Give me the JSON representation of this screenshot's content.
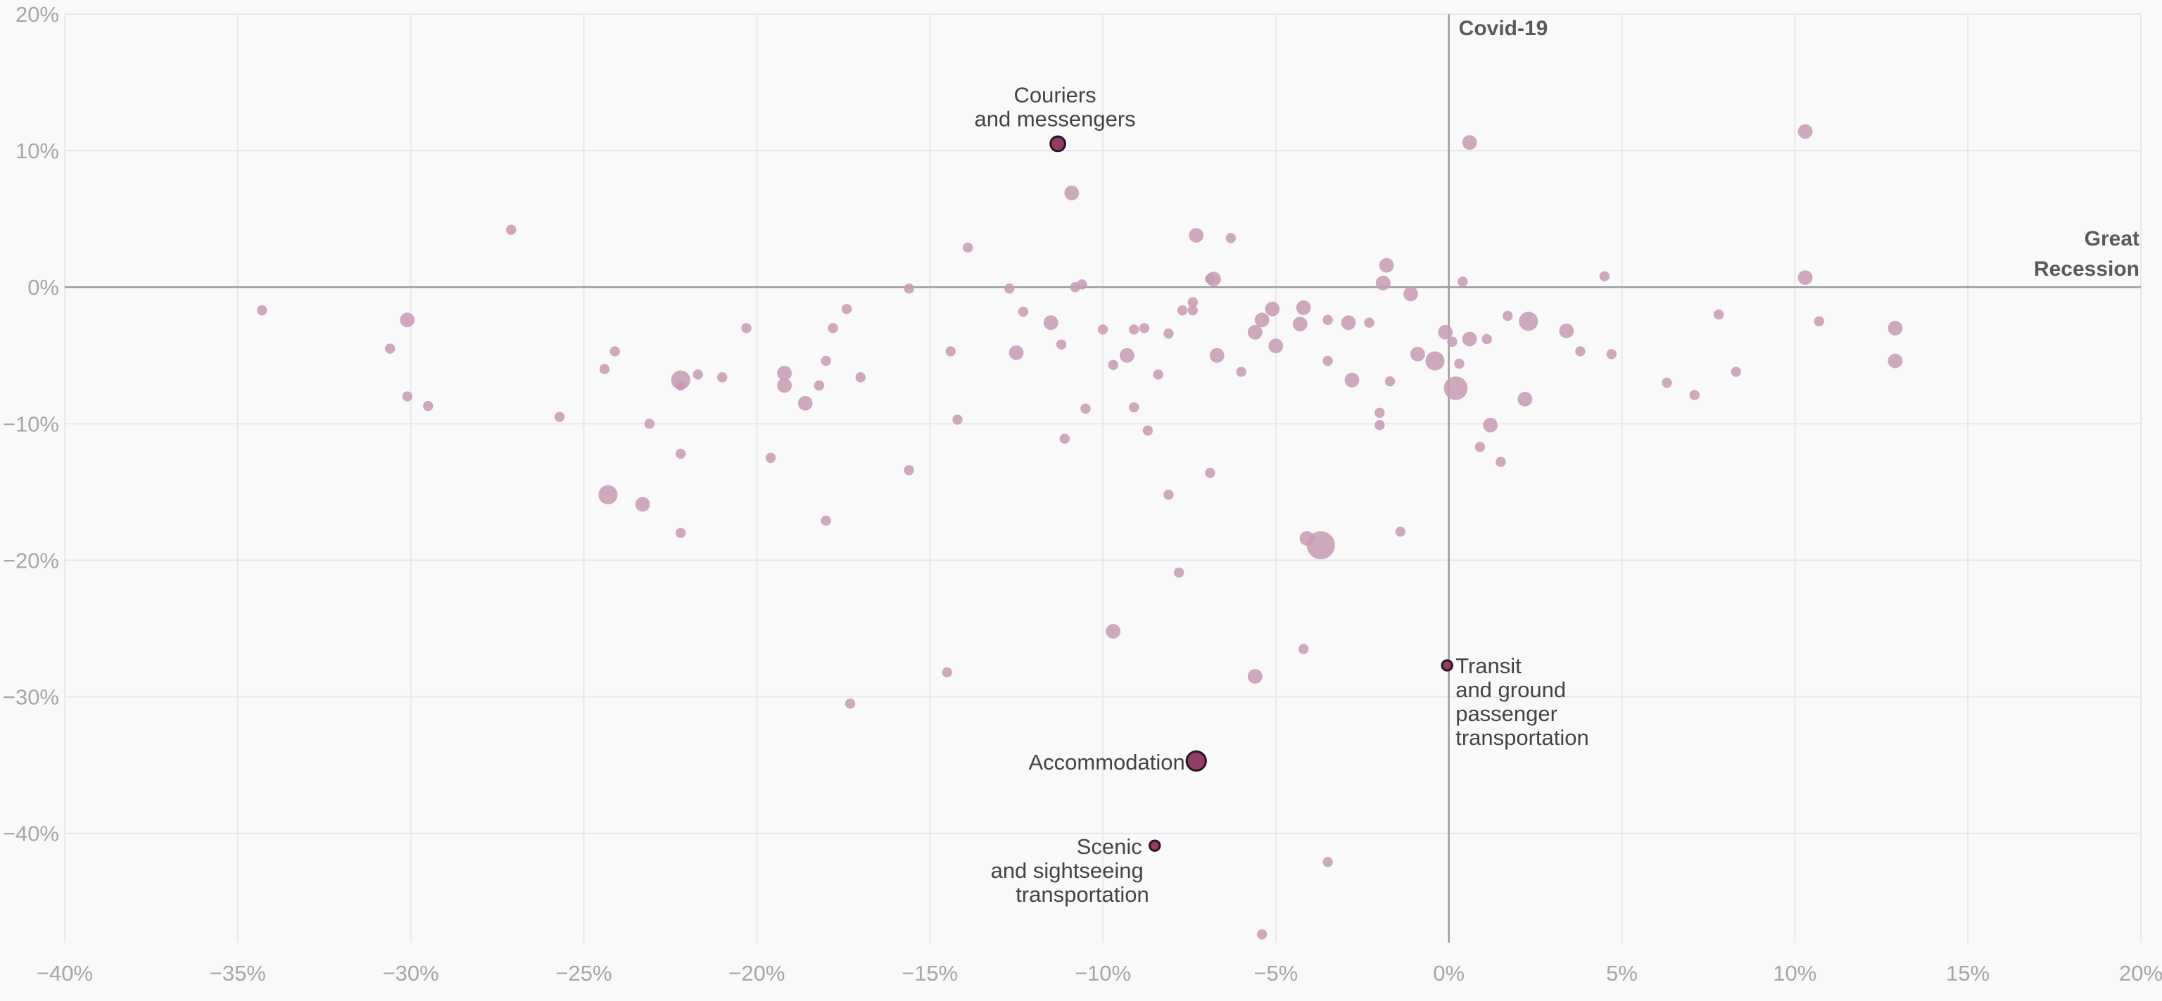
{
  "chart_data": {
    "type": "scatter",
    "title": "",
    "xlabel": "",
    "ylabel": "",
    "xlim": [
      -40,
      20
    ],
    "ylim": [
      -48,
      20
    ],
    "x_ticks": [
      -40,
      -35,
      -30,
      -25,
      -20,
      -15,
      -10,
      -5,
      0,
      5,
      10,
      15,
      20
    ],
    "x_tick_labels": [
      "−40%",
      "−35%",
      "−30%",
      "−25%",
      "−20%",
      "−15%",
      "−10%",
      "−5%",
      "0%",
      "5%",
      "10%",
      "15%",
      "20%"
    ],
    "y_ticks": [
      20,
      10,
      0,
      -10,
      -20,
      -30,
      -40
    ],
    "y_tick_labels": [
      "20%",
      "10%",
      "0%",
      "−10%",
      "−20%",
      "−30%",
      "−40%"
    ],
    "grid": true,
    "reference_lines": {
      "vertical": {
        "label": "Covid-19"
      },
      "horizontal": {
        "label_lines": [
          "Great",
          "Recession"
        ]
      }
    },
    "colors": {
      "point": "#c79ab3",
      "highlight": "#8f3f66",
      "grid": "#e8e8e8",
      "zero_line": "#9a9a9a"
    },
    "points": [
      {
        "x": -34.3,
        "y": -1.7,
        "r": 1
      },
      {
        "x": -30.1,
        "y": -2.4,
        "r": 2
      },
      {
        "x": -30.6,
        "y": -4.5,
        "r": 1
      },
      {
        "x": -30.1,
        "y": -8.0,
        "r": 1
      },
      {
        "x": -29.5,
        "y": -8.7,
        "r": 1
      },
      {
        "x": -27.1,
        "y": 4.2,
        "r": 1
      },
      {
        "x": -25.7,
        "y": -9.5,
        "r": 1
      },
      {
        "x": -24.4,
        "y": -6.0,
        "r": 1
      },
      {
        "x": -24.1,
        "y": -4.7,
        "r": 1
      },
      {
        "x": -24.3,
        "y": -15.2,
        "r": 3
      },
      {
        "x": -23.3,
        "y": -15.9,
        "r": 2
      },
      {
        "x": -23.1,
        "y": -10.0,
        "r": 1
      },
      {
        "x": -22.2,
        "y": -6.8,
        "r": 3
      },
      {
        "x": -22.2,
        "y": -7.2,
        "r": 1
      },
      {
        "x": -21.7,
        "y": -6.4,
        "r": 1
      },
      {
        "x": -22.2,
        "y": -12.2,
        "r": 1
      },
      {
        "x": -22.2,
        "y": -18.0,
        "r": 1
      },
      {
        "x": -21.0,
        "y": -6.6,
        "r": 1
      },
      {
        "x": -20.3,
        "y": -3.0,
        "r": 1
      },
      {
        "x": -19.6,
        "y": -12.5,
        "r": 1
      },
      {
        "x": -19.2,
        "y": -6.3,
        "r": 2
      },
      {
        "x": -19.2,
        "y": -7.2,
        "r": 2
      },
      {
        "x": -18.6,
        "y": -8.5,
        "r": 2
      },
      {
        "x": -18.2,
        "y": -7.2,
        "r": 1
      },
      {
        "x": -18.0,
        "y": -5.4,
        "r": 1
      },
      {
        "x": -17.8,
        "y": -3.0,
        "r": 1
      },
      {
        "x": -18.0,
        "y": -17.1,
        "r": 1
      },
      {
        "x": -17.4,
        "y": -1.6,
        "r": 1
      },
      {
        "x": -17.0,
        "y": -6.6,
        "r": 1
      },
      {
        "x": -17.3,
        "y": -30.5,
        "r": 1
      },
      {
        "x": -15.6,
        "y": -0.1,
        "r": 1
      },
      {
        "x": -15.6,
        "y": -13.4,
        "r": 1
      },
      {
        "x": -14.4,
        "y": -4.7,
        "r": 1
      },
      {
        "x": -14.2,
        "y": -9.7,
        "r": 1
      },
      {
        "x": -13.9,
        "y": 2.9,
        "r": 1
      },
      {
        "x": -14.5,
        "y": -28.2,
        "r": 1
      },
      {
        "x": -12.7,
        "y": -0.1,
        "r": 1
      },
      {
        "x": -12.5,
        "y": -4.8,
        "r": 2
      },
      {
        "x": -12.3,
        "y": -1.8,
        "r": 1
      },
      {
        "x": -11.5,
        "y": -2.6,
        "r": 2
      },
      {
        "x": -11.2,
        "y": -4.2,
        "r": 1
      },
      {
        "x": -11.1,
        "y": -11.1,
        "r": 1
      },
      {
        "x": -10.9,
        "y": 6.9,
        "r": 2
      },
      {
        "x": -10.8,
        "y": 0.0,
        "r": 1
      },
      {
        "x": -10.6,
        "y": 0.2,
        "r": 1
      },
      {
        "x": -10.5,
        "y": -8.9,
        "r": 1
      },
      {
        "x": -10.0,
        "y": -3.1,
        "r": 1
      },
      {
        "x": -9.7,
        "y": -5.7,
        "r": 1
      },
      {
        "x": -9.3,
        "y": -5.0,
        "r": 2
      },
      {
        "x": -9.1,
        "y": -3.1,
        "r": 1
      },
      {
        "x": -9.1,
        "y": -8.8,
        "r": 1
      },
      {
        "x": -8.8,
        "y": -3.0,
        "r": 1
      },
      {
        "x": -8.7,
        "y": -10.5,
        "r": 1
      },
      {
        "x": -9.7,
        "y": -25.2,
        "r": 2
      },
      {
        "x": -8.4,
        "y": -6.4,
        "r": 1
      },
      {
        "x": -8.1,
        "y": -3.4,
        "r": 1
      },
      {
        "x": -8.1,
        "y": -15.2,
        "r": 1
      },
      {
        "x": -7.8,
        "y": -20.9,
        "r": 1
      },
      {
        "x": -7.7,
        "y": -1.7,
        "r": 1
      },
      {
        "x": -7.4,
        "y": -1.7,
        "r": 1
      },
      {
        "x": -7.4,
        "y": -1.1,
        "r": 1
      },
      {
        "x": -7.3,
        "y": 3.8,
        "r": 2
      },
      {
        "x": -6.9,
        "y": 0.6,
        "r": 1
      },
      {
        "x": -6.8,
        "y": 0.6,
        "r": 2
      },
      {
        "x": -6.7,
        "y": -5.0,
        "r": 2
      },
      {
        "x": -6.9,
        "y": -13.6,
        "r": 1
      },
      {
        "x": -6.3,
        "y": 3.6,
        "r": 1
      },
      {
        "x": -6.0,
        "y": -6.2,
        "r": 1
      },
      {
        "x": -5.6,
        "y": -3.3,
        "r": 2
      },
      {
        "x": -5.4,
        "y": -2.4,
        "r": 2
      },
      {
        "x": -5.1,
        "y": -1.6,
        "r": 2
      },
      {
        "x": -5.0,
        "y": -4.3,
        "r": 2
      },
      {
        "x": -5.6,
        "y": -28.5,
        "r": 2
      },
      {
        "x": -5.4,
        "y": -47.4,
        "r": 1
      },
      {
        "x": -4.3,
        "y": -2.7,
        "r": 2
      },
      {
        "x": -4.2,
        "y": -1.5,
        "r": 2
      },
      {
        "x": -4.1,
        "y": -18.4,
        "r": 2
      },
      {
        "x": -4.2,
        "y": -26.5,
        "r": 1
      },
      {
        "x": -3.7,
        "y": -18.9,
        "r": 5
      },
      {
        "x": -3.5,
        "y": -2.4,
        "r": 1
      },
      {
        "x": -3.5,
        "y": -5.4,
        "r": 1
      },
      {
        "x": -2.9,
        "y": -2.6,
        "r": 2
      },
      {
        "x": -2.8,
        "y": -6.8,
        "r": 2
      },
      {
        "x": -2.3,
        "y": -2.6,
        "r": 1
      },
      {
        "x": -3.5,
        "y": -42.1,
        "r": 1
      },
      {
        "x": -1.8,
        "y": 1.6,
        "r": 2
      },
      {
        "x": -1.9,
        "y": 0.3,
        "r": 2
      },
      {
        "x": -2.0,
        "y": -9.2,
        "r": 1
      },
      {
        "x": -2.0,
        "y": -10.1,
        "r": 1
      },
      {
        "x": -1.7,
        "y": -6.9,
        "r": 1
      },
      {
        "x": -1.1,
        "y": -0.5,
        "r": 2
      },
      {
        "x": -1.4,
        "y": -17.9,
        "r": 1
      },
      {
        "x": -0.9,
        "y": -4.9,
        "r": 2
      },
      {
        "x": -0.4,
        "y": -5.4,
        "r": 3
      },
      {
        "x": 0.2,
        "y": -7.4,
        "r": 4
      },
      {
        "x": -0.1,
        "y": -3.3,
        "r": 2
      },
      {
        "x": 0.1,
        "y": -4.0,
        "r": 1
      },
      {
        "x": 0.4,
        "y": 0.4,
        "r": 1
      },
      {
        "x": 0.6,
        "y": 10.6,
        "r": 2
      },
      {
        "x": 0.6,
        "y": -3.8,
        "r": 2
      },
      {
        "x": 0.3,
        "y": -5.6,
        "r": 1
      },
      {
        "x": 0.9,
        "y": -11.7,
        "r": 1
      },
      {
        "x": 1.2,
        "y": -10.1,
        "r": 2
      },
      {
        "x": 1.1,
        "y": -3.8,
        "r": 1
      },
      {
        "x": 1.7,
        "y": -2.1,
        "r": 1
      },
      {
        "x": 1.5,
        "y": -12.8,
        "r": 1
      },
      {
        "x": 2.3,
        "y": -2.5,
        "r": 3
      },
      {
        "x": 2.2,
        "y": -8.2,
        "r": 2
      },
      {
        "x": 3.4,
        "y": -3.2,
        "r": 2
      },
      {
        "x": 3.8,
        "y": -4.7,
        "r": 1
      },
      {
        "x": 4.5,
        "y": 0.8,
        "r": 1
      },
      {
        "x": 4.7,
        "y": -4.9,
        "r": 1
      },
      {
        "x": 6.3,
        "y": -7.0,
        "r": 1
      },
      {
        "x": 7.1,
        "y": -7.9,
        "r": 1
      },
      {
        "x": 7.8,
        "y": -2.0,
        "r": 1
      },
      {
        "x": 8.3,
        "y": -6.2,
        "r": 1
      },
      {
        "x": 10.3,
        "y": 11.4,
        "r": 2
      },
      {
        "x": 10.3,
        "y": 0.7,
        "r": 2
      },
      {
        "x": 10.7,
        "y": -2.5,
        "r": 1
      },
      {
        "x": 12.9,
        "y": -3.0,
        "r": 2
      },
      {
        "x": 12.9,
        "y": -5.4,
        "r": 2
      }
    ],
    "highlighted": [
      {
        "label_lines": [
          "Couriers",
          "and messengers"
        ],
        "x": -11.3,
        "y": 10.5,
        "r": 2
      },
      {
        "label_lines": [
          "Accommodation"
        ],
        "x": -7.3,
        "y": -34.7,
        "r": 3
      },
      {
        "label_lines": [
          "Transit",
          "and ground",
          "passenger",
          "transportation"
        ],
        "x": -0.05,
        "y": -27.7,
        "r": 1
      },
      {
        "label_lines": [
          "Scenic",
          "and sightseeing",
          "transportation"
        ],
        "x": -8.5,
        "y": -40.9,
        "r": 1
      }
    ]
  }
}
